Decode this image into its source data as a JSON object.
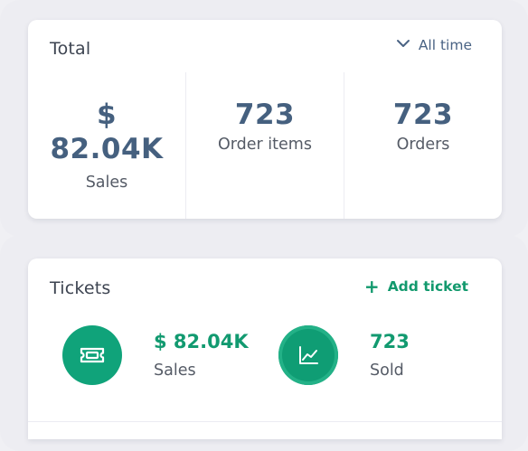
{
  "total": {
    "title": "Total",
    "range_label": "All time",
    "stats": {
      "sales": {
        "currency": "$",
        "value": "82.04K",
        "label": "Sales"
      },
      "order_items": {
        "value": "723",
        "label": "Order items"
      },
      "orders": {
        "value": "723",
        "label": "Orders"
      }
    }
  },
  "tickets": {
    "title": "Tickets",
    "add_label": "Add ticket",
    "add_icon": "plus-icon",
    "stats": {
      "sales": {
        "icon": "ticket-icon",
        "value": "$ 82.04K",
        "label": "Sales"
      },
      "sold": {
        "icon": "chart-icon",
        "value": "723",
        "label": "Sold"
      }
    }
  },
  "colors": {
    "accent_green": "#12996d",
    "stat_blue": "#45607f",
    "background": "#ededf2"
  }
}
